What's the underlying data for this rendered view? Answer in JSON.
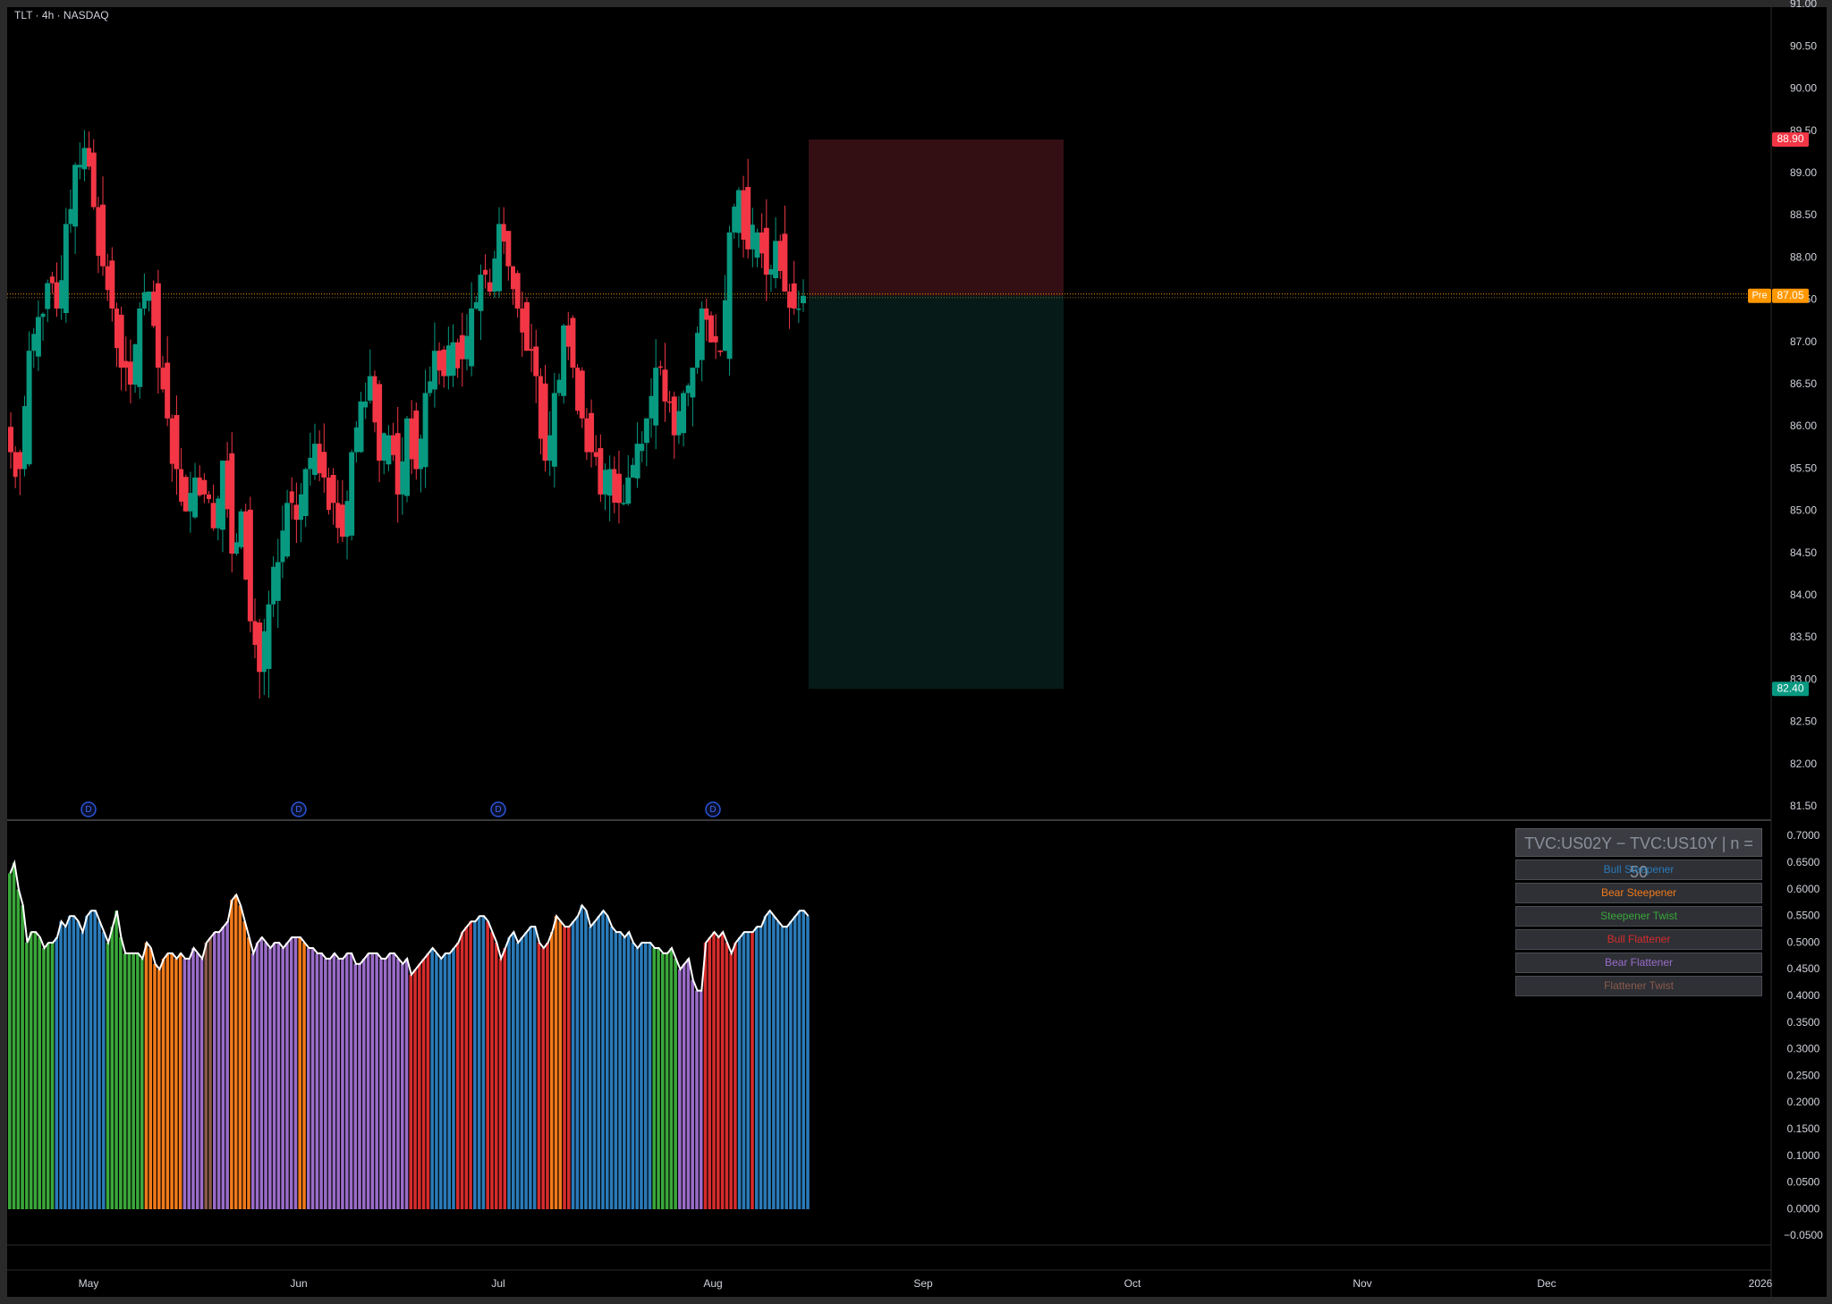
{
  "header": {
    "symbol": "TLT · 4h · NASDAQ"
  },
  "price_axis": {
    "labels": [
      "91.00",
      "90.50",
      "90.00",
      "89.50",
      "89.00",
      "88.50",
      "88.00",
      "87.50",
      "87.00",
      "86.50",
      "86.00",
      "85.50",
      "85.00",
      "84.50",
      "84.00",
      "83.50",
      "83.00",
      "82.50",
      "82.00",
      "81.50"
    ],
    "badge_stop": "88.90",
    "badge_current_tag": "Pre",
    "badge_current": "87.05",
    "badge_target": "82.40",
    "colors": {
      "stop": "#f23645",
      "current": "#ff9800",
      "target": "#089981"
    }
  },
  "osc_axis": {
    "labels": [
      "0.7000",
      "0.6500",
      "0.6000",
      "0.5500",
      "0.5000",
      "0.4500",
      "0.4000",
      "0.3500",
      "0.3000",
      "0.2500",
      "0.2000",
      "0.1500",
      "0.1000",
      "0.0500",
      "0.0000",
      "−0.0500"
    ]
  },
  "time_axis": {
    "labels": [
      "May",
      "Jun",
      "Jul",
      "Aug",
      "Sep",
      "Oct",
      "Nov",
      "Dec",
      "2026"
    ]
  },
  "dividend_markers": [
    "D",
    "D",
    "D",
    "D"
  ],
  "legend": {
    "title": "TVC:US02Y − TVC:US10Y | n = 50",
    "items": [
      {
        "label": "Bull Steepener",
        "color": "#2a7ab8"
      },
      {
        "label": "Bear Steepener",
        "color": "#f27a1a"
      },
      {
        "label": "Steepener Twist",
        "color": "#3aa83a"
      },
      {
        "label": "Bull Flattener",
        "color": "#d62c2c"
      },
      {
        "label": "Bear Flattener",
        "color": "#9a6cc8"
      },
      {
        "label": "Flattener Twist",
        "color": "#8b5a4a"
      }
    ]
  },
  "chart_data": [
    {
      "type": "candlestick",
      "title": "TLT · 4h · NASDAQ",
      "ylim": [
        81.5,
        91.0
      ],
      "colors": {
        "up": "#089981",
        "down": "#f23645"
      },
      "path_close": [
        85.2,
        85.0,
        86.4,
        86.8,
        87.2,
        86.9,
        87.9,
        88.6,
        88.8,
        88.1,
        87.4,
        86.9,
        86.2,
        86.0,
        86.9,
        87.1,
        86.2,
        85.6,
        85.0,
        84.5,
        84.9,
        84.7,
        84.3,
        85.1,
        84.0,
        84.5,
        83.2,
        82.6,
        83.4,
        83.9,
        84.6,
        84.4,
        85.0,
        85.3,
        84.9,
        84.6,
        84.2,
        85.2,
        85.8,
        86.1,
        85.1,
        85.4,
        84.7,
        85.6,
        85.0,
        85.9,
        86.4,
        86.1,
        86.5,
        86.3,
        86.9,
        87.3,
        87.1,
        87.9,
        87.4,
        86.9,
        86.4,
        86.1,
        85.1,
        85.9,
        86.7,
        86.2,
        85.6,
        85.2,
        84.7,
        85.0,
        84.6,
        84.9,
        85.3,
        85.6,
        86.2,
        85.8,
        85.4,
        85.9,
        86.2,
        86.9,
        86.5,
        86.4,
        87.8,
        88.3,
        87.6,
        87.8,
        87.3,
        87.7,
        87.1,
        86.9,
        87.05
      ],
      "trade_box": {
        "entry": 87.05,
        "stop": 88.9,
        "target": 82.4
      }
    },
    {
      "type": "bar",
      "title": "TVC:US02Y − TVC:US10Y | n = 50",
      "ylim": [
        -0.05,
        0.72
      ],
      "series_names": [
        "Bull Steepener",
        "Bear Steepener",
        "Steepener Twist",
        "Bull Flattener",
        "Bear Flattener",
        "Flattener Twist"
      ],
      "segments": [
        {
          "regime": "Steepener Twist",
          "values": [
            0.63,
            0.65,
            0.6,
            0.57,
            0.5,
            0.52,
            0.52,
            0.51,
            0.49,
            0.5,
            0.5
          ]
        },
        {
          "regime": "Bull Steepener",
          "values": [
            0.51,
            0.54,
            0.53,
            0.55,
            0.55,
            0.54,
            0.52,
            0.55,
            0.56,
            0.56,
            0.54,
            0.52
          ]
        },
        {
          "regime": "Steepener Twist",
          "values": [
            0.5,
            0.53,
            0.56,
            0.51,
            0.48,
            0.48,
            0.48,
            0.48,
            0.47
          ]
        },
        {
          "regime": "Bear Steepener",
          "values": [
            0.5,
            0.49,
            0.46,
            0.45,
            0.47,
            0.48,
            0.48,
            0.47,
            0.48
          ]
        },
        {
          "regime": "Bear Flattener",
          "values": [
            0.47,
            0.47,
            0.49,
            0.48,
            0.47
          ]
        },
        {
          "regime": "Flattener Twist",
          "values": [
            0.5,
            0.51
          ]
        },
        {
          "regime": "Bear Flattener",
          "values": [
            0.52,
            0.52,
            0.53,
            0.54
          ]
        },
        {
          "regime": "Bear Steepener",
          "values": [
            0.58,
            0.59,
            0.57,
            0.54,
            0.51
          ]
        },
        {
          "regime": "Bear Flattener",
          "values": [
            0.48,
            0.5,
            0.51,
            0.5,
            0.49,
            0.5,
            0.5,
            0.49,
            0.5,
            0.51,
            0.51
          ]
        },
        {
          "regime": "Bear Steepener",
          "values": [
            0.51,
            0.5
          ]
        },
        {
          "regime": "Bear Flattener",
          "values": [
            0.49,
            0.49,
            0.48,
            0.48,
            0.47,
            0.47,
            0.48,
            0.47,
            0.47,
            0.48,
            0.48,
            0.46,
            0.46,
            0.47,
            0.48,
            0.48,
            0.48,
            0.47,
            0.47,
            0.48,
            0.48,
            0.47,
            0.46,
            0.47
          ]
        },
        {
          "regime": "Bull Flattener",
          "values": [
            0.44,
            0.45,
            0.46,
            0.47,
            0.48
          ]
        },
        {
          "regime": "Bull Steepener",
          "values": [
            0.49,
            0.48,
            0.47,
            0.48,
            0.48,
            0.49
          ]
        },
        {
          "regime": "Bull Flattener",
          "values": [
            0.5,
            0.52,
            0.53,
            0.54
          ]
        },
        {
          "regime": "Bull Steepener",
          "values": [
            0.54,
            0.55,
            0.55
          ]
        },
        {
          "regime": "Bull Flattener",
          "values": [
            0.54,
            0.52,
            0.5,
            0.47,
            0.49
          ]
        },
        {
          "regime": "Bull Steepener",
          "values": [
            0.51,
            0.52,
            0.5,
            0.51,
            0.52,
            0.53,
            0.53
          ]
        },
        {
          "regime": "Bull Flattener",
          "values": [
            0.5,
            0.49,
            0.5
          ]
        },
        {
          "regime": "Bear Steepener",
          "values": [
            0.52,
            0.55,
            0.54
          ]
        },
        {
          "regime": "Bull Flattener",
          "values": [
            0.53,
            0.53
          ]
        },
        {
          "regime": "Bull Steepener",
          "values": [
            0.54,
            0.55,
            0.57,
            0.56,
            0.53,
            0.54,
            0.55,
            0.56,
            0.55,
            0.53,
            0.52,
            0.52,
            0.51,
            0.52,
            0.5,
            0.49,
            0.5,
            0.5,
            0.5
          ]
        },
        {
          "regime": "Steepener Twist",
          "values": [
            0.49,
            0.49,
            0.48,
            0.48,
            0.49,
            0.47
          ]
        },
        {
          "regime": "Bear Flattener",
          "values": [
            0.45,
            0.46,
            0.47,
            0.43,
            0.41,
            0.41
          ]
        },
        {
          "regime": "Bull Flattener",
          "values": [
            0.5,
            0.51,
            0.52,
            0.51,
            0.52,
            0.5,
            0.48,
            0.5
          ]
        },
        {
          "regime": "Bull Steepener",
          "values": [
            0.51,
            0.52,
            0.52
          ]
        },
        {
          "regime": "Bull Flattener",
          "values": [
            0.52
          ]
        },
        {
          "regime": "Bull Steepener",
          "values": [
            0.53,
            0.53,
            0.55,
            0.56,
            0.55,
            0.54,
            0.53,
            0.53,
            0.54,
            0.55,
            0.56,
            0.56,
            0.55
          ]
        }
      ]
    }
  ]
}
